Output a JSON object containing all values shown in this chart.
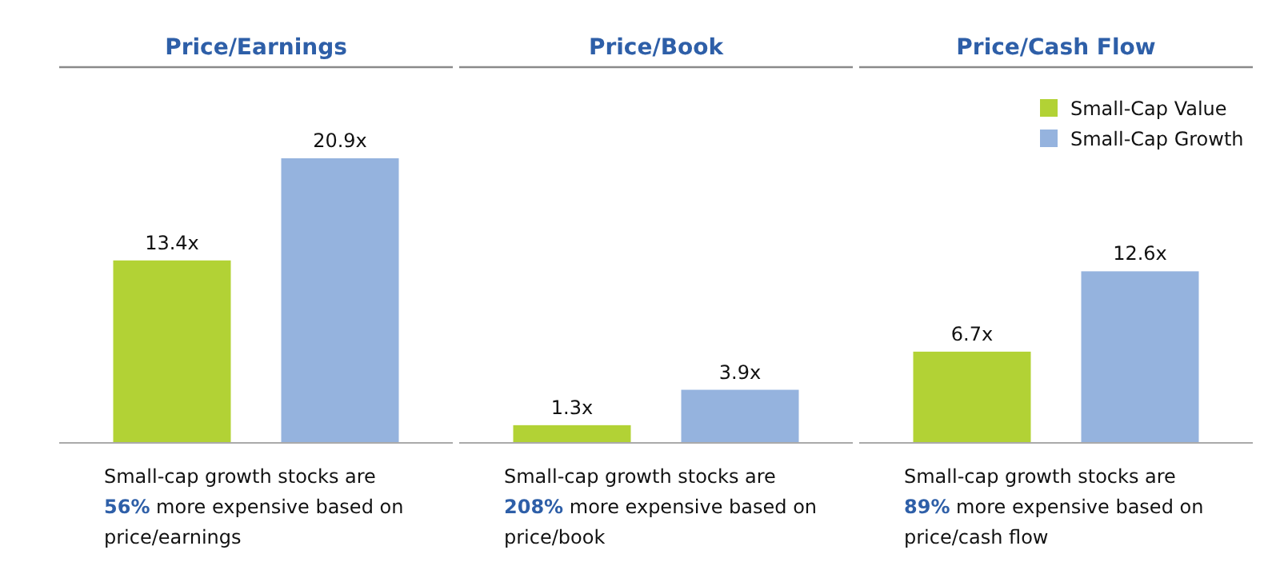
{
  "chart_data": [
    {
      "type": "bar",
      "title": "Price/Earnings",
      "categories": [
        null
      ],
      "legend": false,
      "series": [
        {
          "color": "#b2d235",
          "values": [
            13.4
          ],
          "value_labels": [
            "13.4x"
          ]
        },
        {
          "color": "#95b3de",
          "values": [
            20.9
          ],
          "value_labels": [
            "20.9x"
          ]
        }
      ],
      "annotations": [
        "Small-cap growth stocks are 56% more expensive based on price/earnings"
      ]
    },
    {
      "type": "bar",
      "title": "Price/Book",
      "categories": [
        null
      ],
      "legend": false,
      "series": [
        {
          "color": "#b2d235",
          "values": [
            1.3
          ],
          "value_labels": [
            "1.3x"
          ]
        },
        {
          "color": "#95b3de",
          "values": [
            3.9
          ],
          "value_labels": [
            "3.9x"
          ]
        }
      ],
      "annotations": [
        "Small-cap growth stocks are 208% more expensive based on price/book"
      ]
    },
    {
      "type": "bar",
      "title": "Price/Cash Flow",
      "categories": [
        null
      ],
      "legend": "top right",
      "series": [
        {
          "name": "Small-Cap Value",
          "color": "#b2d235",
          "values": [
            6.7
          ],
          "value_labels": [
            "6.7x"
          ]
        },
        {
          "name": "Small-Cap Growth",
          "color": "#95b3de",
          "values": [
            12.6
          ],
          "value_labels": [
            "12.6x"
          ]
        }
      ],
      "annotations": [
        "Small-cap growth stocks are 89% more expensive based on price/cash flow"
      ]
    }
  ]
}
